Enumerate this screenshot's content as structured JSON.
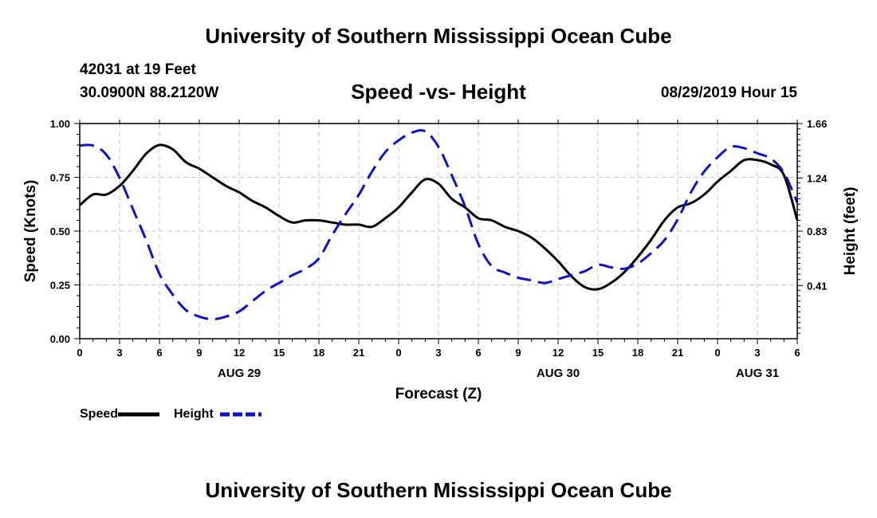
{
  "header": {
    "title": "University of Southern Mississippi Ocean Cube",
    "station": "42031 at 19 Feet",
    "coords": "30.0900N 88.2120W",
    "subtitle": "Speed -vs- Height",
    "date": "08/29/2019 Hour 15"
  },
  "footer": {
    "title": "University of Southern Mississippi Ocean Cube"
  },
  "chart_data": {
    "type": "line",
    "title": "Speed -vs- Height",
    "xlabel": "Forecast (Z)",
    "ylabel": "Speed (Knots)",
    "y2label": "Height (feet)",
    "xlim": [
      0,
      54
    ],
    "ylim": [
      0,
      1.0
    ],
    "y2lim": [
      0,
      1.66
    ],
    "x_ticks": [
      0,
      3,
      6,
      9,
      12,
      15,
      18,
      21,
      24,
      27,
      30,
      33,
      36,
      39,
      42,
      45,
      48,
      51,
      54
    ],
    "x_tick_labels": [
      "0",
      "3",
      "6",
      "9",
      "12",
      "15",
      "18",
      "21",
      "0",
      "3",
      "6",
      "9",
      "12",
      "15",
      "18",
      "21",
      "0",
      "3",
      "6"
    ],
    "y_ticks": [
      "0.00",
      "0.25",
      "0.50",
      "0.75",
      "1.00"
    ],
    "y2_ticks": [
      "0.41",
      "0.83",
      "1.24",
      "1.66"
    ],
    "date_labels": [
      {
        "x": 12,
        "label": "AUG 29"
      },
      {
        "x": 36,
        "label": "AUG 30"
      },
      {
        "x": 51,
        "label": "AUG 31"
      }
    ],
    "grid": true,
    "legend": {
      "position": "bottom-left",
      "items": [
        {
          "label": "Speed",
          "color": "#000000",
          "dash": "solid"
        },
        {
          "label": "Height",
          "color": "#1010c8",
          "dash": "dashed"
        }
      ]
    },
    "series": [
      {
        "name": "Speed",
        "axis": "left",
        "color": "#000000",
        "dash": "solid",
        "x": [
          0,
          1,
          2,
          3,
          4,
          5,
          6,
          7,
          8,
          9,
          10,
          11,
          12,
          13,
          14,
          15,
          16,
          17,
          18,
          19,
          20,
          21,
          22,
          23,
          24,
          25,
          26,
          27,
          28,
          29,
          30,
          31,
          32,
          33,
          34,
          35,
          36,
          37,
          38,
          39,
          40,
          41,
          42,
          43,
          44,
          45,
          46,
          47,
          48,
          49,
          50,
          51,
          52,
          53,
          54
        ],
        "values": [
          0.62,
          0.67,
          0.67,
          0.71,
          0.78,
          0.86,
          0.9,
          0.88,
          0.82,
          0.79,
          0.75,
          0.71,
          0.68,
          0.64,
          0.61,
          0.57,
          0.54,
          0.55,
          0.55,
          0.54,
          0.53,
          0.53,
          0.52,
          0.56,
          0.61,
          0.68,
          0.74,
          0.72,
          0.65,
          0.61,
          0.56,
          0.55,
          0.52,
          0.5,
          0.47,
          0.42,
          0.36,
          0.29,
          0.24,
          0.23,
          0.26,
          0.31,
          0.38,
          0.46,
          0.55,
          0.61,
          0.63,
          0.67,
          0.73,
          0.78,
          0.83,
          0.83,
          0.81,
          0.76,
          0.55
        ]
      },
      {
        "name": "Height",
        "axis": "right",
        "color": "#1010c8",
        "dash": "dashed",
        "x": [
          0,
          1,
          2,
          3,
          4,
          5,
          6,
          7,
          8,
          9,
          10,
          11,
          12,
          13,
          14,
          15,
          16,
          17,
          18,
          19,
          20,
          21,
          22,
          23,
          24,
          25,
          26,
          27,
          28,
          29,
          30,
          31,
          32,
          33,
          34,
          35,
          36,
          37,
          38,
          39,
          40,
          41,
          42,
          43,
          44,
          45,
          46,
          47,
          48,
          49,
          50,
          51,
          52,
          53,
          54
        ],
        "values": [
          1.49,
          1.49,
          1.42,
          1.24,
          1.0,
          0.76,
          0.5,
          0.34,
          0.22,
          0.17,
          0.15,
          0.17,
          0.21,
          0.29,
          0.37,
          0.43,
          0.49,
          0.54,
          0.62,
          0.8,
          0.96,
          1.11,
          1.29,
          1.44,
          1.53,
          1.59,
          1.6,
          1.48,
          1.26,
          1.02,
          0.73,
          0.56,
          0.51,
          0.47,
          0.45,
          0.43,
          0.46,
          0.49,
          0.52,
          0.57,
          0.55,
          0.54,
          0.58,
          0.66,
          0.76,
          0.92,
          1.13,
          1.29,
          1.4,
          1.48,
          1.47,
          1.43,
          1.39,
          1.28,
          1.05
        ]
      }
    ]
  }
}
